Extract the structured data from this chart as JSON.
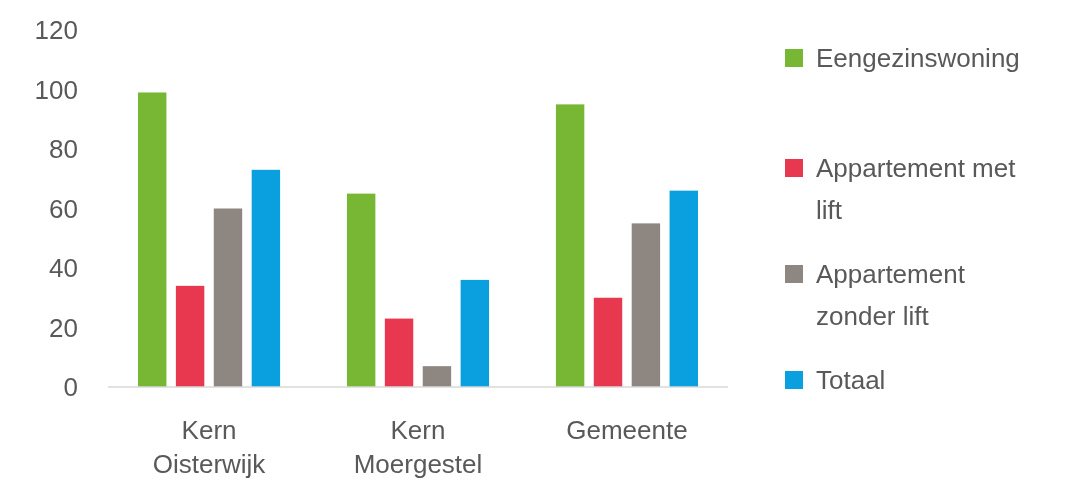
{
  "chart_data": {
    "type": "bar",
    "categories": [
      "Kern Oisterwijk",
      "Kern Moergestel",
      "Gemeente"
    ],
    "series": [
      {
        "name": "Eengezinswoning",
        "color": "#77b734",
        "values": [
          99,
          65,
          95
        ]
      },
      {
        "name": "Appartement met lift",
        "color": "#e8384f",
        "values": [
          34,
          23,
          30
        ]
      },
      {
        "name": "Appartement zonder lift",
        "color": "#8e8680",
        "values": [
          60,
          7,
          55
        ]
      },
      {
        "name": "Totaal",
        "color": "#0aa0e0",
        "values": [
          73,
          36,
          66
        ]
      }
    ],
    "ylim": [
      0,
      120
    ],
    "yticks": [
      0,
      20,
      40,
      60,
      80,
      100,
      120
    ],
    "grid": false,
    "legend": "right"
  }
}
